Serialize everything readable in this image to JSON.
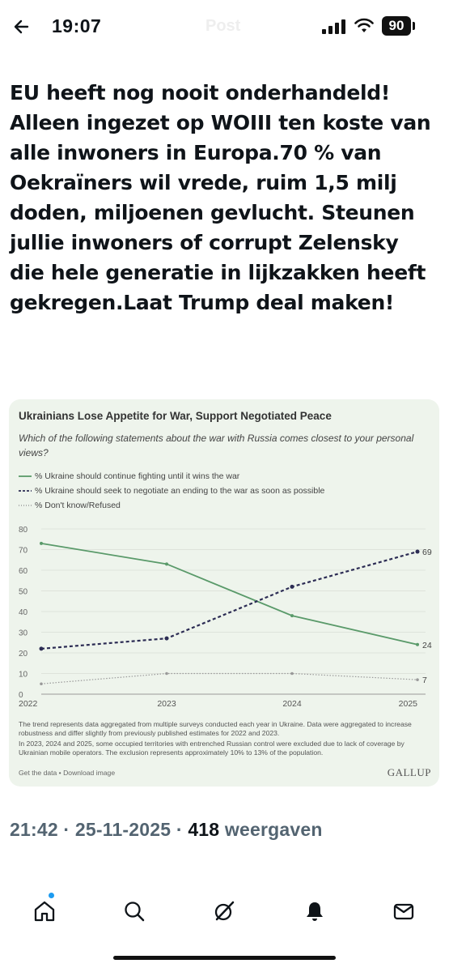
{
  "status_bar": {
    "time": "19:07",
    "faded_title": "Post",
    "battery": "90"
  },
  "post": {
    "text": "EU heeft nog nooit onderhandeld! Alleen ingezet op WOIII ten koste van alle inwoners in Europa.70 % van Oekraïners wil vrede, ruim 1,5 milj doden, miljoenen gevlucht. Steunen jullie inwoners of corrupt Zelensky die hele generatie in lijkzakken heeft gekregen.Laat Trump deal maken!"
  },
  "chart_card": {
    "title": "Ukrainians Lose Appetite for War, Support Negotiated Peace",
    "subtitle": "Which of the following statements about the war with Russia comes closest to your personal views?",
    "legend": [
      "% Ukraine should continue fighting until it wins the war",
      "% Ukraine should seek to negotiate an ending to the war as soon as possible",
      "% Don't know/Refused"
    ],
    "note_1": "The trend represents data aggregated from multiple surveys conducted each year in Ukraine. Data were aggregated to increase robustness and differ slightly from previously published estimates for 2022 and 2023.",
    "note_2": "In 2023, 2024 and 2025, some occupied territories with entrenched Russian control were excluded due to lack of coverage by Ukrainian mobile operators. The exclusion represents approximately 10% to 13% of the population.",
    "links": "Get the data • Download image",
    "brand": "GALLUP",
    "colors": {
      "fight": "#5a9a6a",
      "negotiate": "#2c2c54",
      "dontknow": "#999999"
    }
  },
  "chart_data": {
    "type": "line",
    "x": [
      "2022",
      "2023",
      "2024",
      "2025"
    ],
    "y_ticks": [
      "0",
      "10",
      "20",
      "30",
      "40",
      "50",
      "60",
      "70",
      "80"
    ],
    "ylim": [
      0,
      80
    ],
    "series": [
      {
        "name": "% Ukraine should continue fighting until it wins the war",
        "values": [
          73,
          63,
          38,
          24
        ],
        "end_label": "24"
      },
      {
        "name": "% Ukraine should seek to negotiate an ending to the war as soon as possible",
        "values": [
          22,
          27,
          52,
          69
        ],
        "end_label": "69"
      },
      {
        "name": "% Don't know/Refused",
        "values": [
          5,
          10,
          10,
          7
        ],
        "end_label": "7"
      }
    ],
    "grid": true
  },
  "meta": {
    "time": "21:42",
    "sep1": " · ",
    "date": "25-11-2025",
    "sep2": " · ",
    "views_count": "418",
    "views_label": " weergaven"
  },
  "nav": {
    "icons": [
      "home-icon",
      "search-icon",
      "grok-icon",
      "notifications-icon",
      "messages-icon"
    ]
  }
}
